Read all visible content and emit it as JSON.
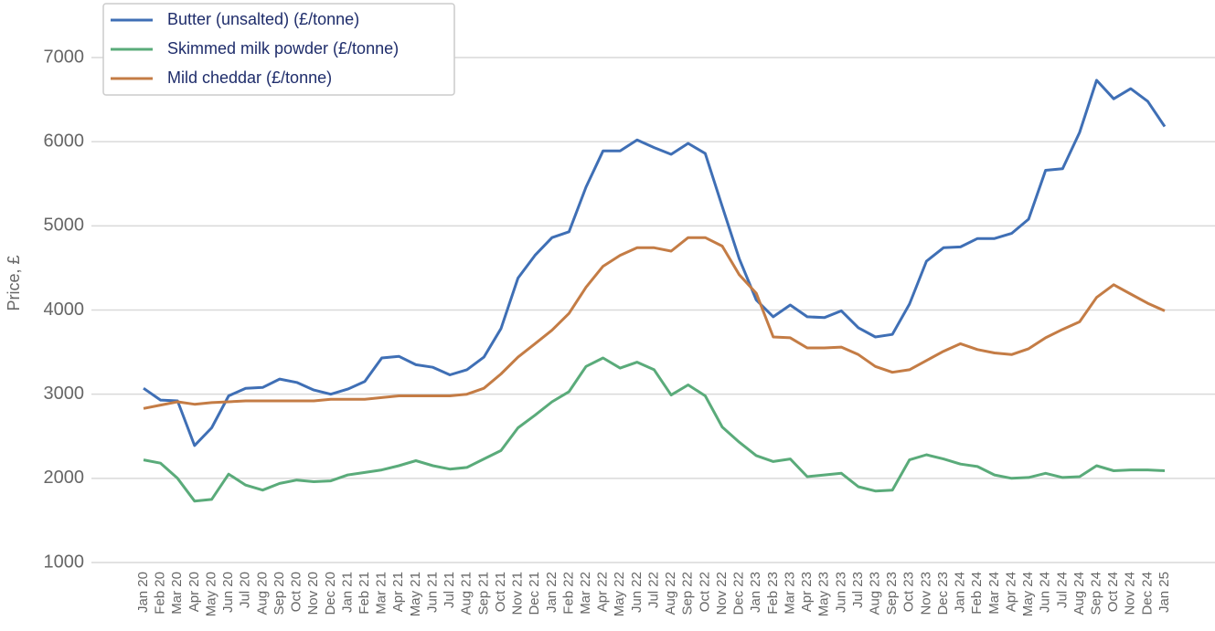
{
  "chart_data": {
    "type": "line",
    "y_label": "Price, £",
    "categories": [
      "Jan 20",
      "Feb 20",
      "Mar 20",
      "Apr 20",
      "May 20",
      "Jun 20",
      "Jul 20",
      "Aug 20",
      "Sep 20",
      "Oct 20",
      "Nov 20",
      "Dec 20",
      "Jan 21",
      "Feb 21",
      "Mar 21",
      "Apr 21",
      "May 21",
      "Jun 21",
      "Jul 21",
      "Aug 21",
      "Sep 21",
      "Oct 21",
      "Nov 21",
      "Dec 21",
      "Jan 22",
      "Feb 22",
      "Mar 22",
      "Apr 22",
      "May 22",
      "Jun 22",
      "Jul 22",
      "Aug 22",
      "Sep 22",
      "Oct 22",
      "Nov 22",
      "Dec 22",
      "Jan 23",
      "Feb 23",
      "Mar 23",
      "Apr 23",
      "May 23",
      "Jun 23",
      "Jul 23",
      "Aug 23",
      "Sep 23",
      "Oct 23",
      "Nov 23",
      "Dec 23",
      "Jan 24",
      "Feb 24",
      "Mar 24",
      "Apr 24",
      "May 24",
      "Jun 24",
      "Jul 24",
      "Aug 24",
      "Sep 24",
      "Oct 24",
      "Nov 24",
      "Dec 24",
      "Jan 25"
    ],
    "series": [
      {
        "name": "Butter (unsalted) (£/tonne)",
        "color": "#3f6fb5",
        "values": [
          3070,
          2930,
          2920,
          2390,
          2600,
          2980,
          3070,
          3080,
          3180,
          3140,
          3050,
          3000,
          3060,
          3150,
          3430,
          3450,
          3350,
          3320,
          3230,
          3290,
          3440,
          3780,
          4380,
          4650,
          4860,
          4930,
          5460,
          5890,
          5890,
          6020,
          5930,
          5850,
          5980,
          5860,
          5230,
          4610,
          4120,
          3920,
          4060,
          3920,
          3910,
          3990,
          3790,
          3680,
          3710,
          4070,
          4580,
          4740,
          4750,
          4850,
          4850,
          4910,
          5080,
          5660,
          5680,
          6110,
          6730,
          6510,
          6630,
          6480,
          6180
        ]
      },
      {
        "name": "Skimmed milk powder (£/tonne)",
        "color": "#5aab7a",
        "values": [
          2220,
          2180,
          2000,
          1730,
          1750,
          2050,
          1920,
          1860,
          1940,
          1980,
          1960,
          1970,
          2040,
          2070,
          2100,
          2150,
          2210,
          2150,
          2110,
          2130,
          2230,
          2330,
          2600,
          2750,
          2910,
          3030,
          3330,
          3430,
          3310,
          3380,
          3290,
          2990,
          3110,
          2980,
          2610,
          2430,
          2270,
          2200,
          2230,
          2020,
          2040,
          2060,
          1900,
          1850,
          1860,
          2220,
          2280,
          2230,
          2170,
          2140,
          2040,
          2000,
          2010,
          2060,
          2010,
          2020,
          2150,
          2090,
          2100,
          2100,
          2090
        ]
      },
      {
        "name": "Mild cheddar (£/tonne)",
        "color": "#c47c45",
        "values": [
          2830,
          2870,
          2910,
          2880,
          2900,
          2910,
          2920,
          2920,
          2920,
          2920,
          2920,
          2940,
          2940,
          2940,
          2960,
          2980,
          2980,
          2980,
          2980,
          3000,
          3070,
          3240,
          3440,
          3600,
          3760,
          3960,
          4270,
          4520,
          4650,
          4740,
          4740,
          4700,
          4860,
          4860,
          4760,
          4420,
          4200,
          3680,
          3670,
          3550,
          3550,
          3560,
          3470,
          3330,
          3260,
          3290,
          3400,
          3510,
          3600,
          3530,
          3490,
          3470,
          3540,
          3670,
          3770,
          3860,
          4150,
          4300,
          4190,
          4080,
          3990
        ]
      }
    ],
    "ylim": [
      1000,
      7000
    ],
    "yticks": [
      1000,
      2000,
      3000,
      4000,
      5000,
      6000,
      7000
    ],
    "grid": true,
    "legend": "top-left"
  }
}
